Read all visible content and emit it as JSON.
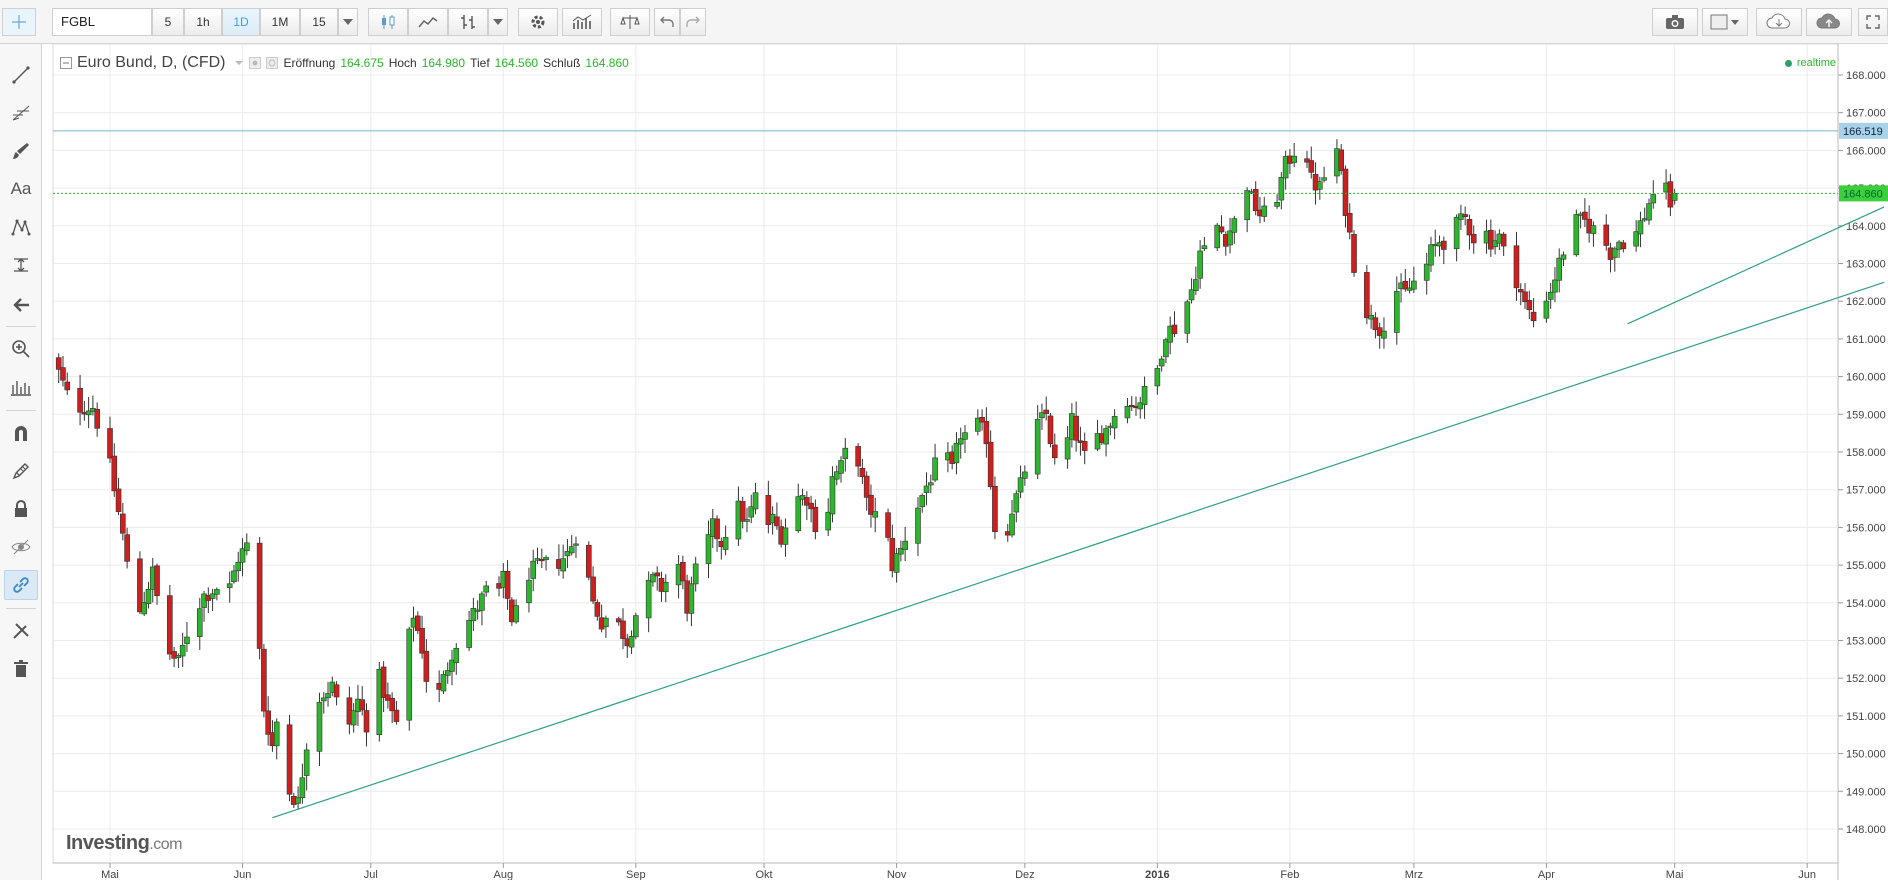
{
  "toolbar": {
    "symbol": "FGBL",
    "intervals": [
      "5",
      "1h",
      "1D",
      "1M",
      "15"
    ],
    "active_interval": "1D"
  },
  "icons": {
    "sidebar": [
      "crosshair-icon",
      "trend-line-icon",
      "fib-icon",
      "brush-icon",
      "text-icon",
      "pattern-icon",
      "measure-icon",
      "arrow-icon",
      "zoom-icon",
      "indicator-icon",
      "magnet-icon",
      "pencil-lock-icon",
      "lock-icon",
      "eye-hide-icon",
      "link-icon",
      "settings-tools-icon",
      "trash-icon"
    ],
    "toolbar": [
      "candles-icon",
      "line-chart-icon",
      "bars-icon",
      "settings-icon",
      "indicators-icon",
      "compare-icon",
      "undo-icon",
      "redo-icon",
      "camera-icon",
      "layout-icon",
      "cloud-download-icon",
      "cloud-upload-icon",
      "fullscreen-icon"
    ]
  },
  "legend": {
    "title": "Euro Bund, D, (CFD)",
    "open_label": "Eröffnung",
    "open": "164.675",
    "high_label": "Hoch",
    "high": "164.980",
    "low_label": "Tief",
    "low": "164.560",
    "close_label": "Schluß",
    "close": "164.860",
    "realtime": "realtime"
  },
  "watermark": {
    "brand": "Investing",
    "domain": ".com"
  },
  "colors": {
    "up": "#2db52d",
    "down": "#cc1f1f",
    "trendline": "#2f9e8a",
    "hline": "#7fb3cf",
    "price_tag": "#3ccf3c",
    "hline_tag": "#a9d2e8"
  },
  "chart_data": {
    "type": "candlestick",
    "title": "Euro Bund, D, (CFD)",
    "ylim": [
      147.5,
      168.6
    ],
    "y_ticks": [
      "148.000",
      "149.000",
      "150.000",
      "151.000",
      "152.000",
      "153.000",
      "154.000",
      "155.000",
      "156.000",
      "157.000",
      "158.000",
      "159.000",
      "160.000",
      "161.000",
      "162.000",
      "163.000",
      "164.000",
      "165.000",
      "166.000",
      "167.000",
      "168.000"
    ],
    "x_labels": [
      {
        "label": "Mai",
        "day": 0
      },
      {
        "label": "Jun",
        "day": 31
      },
      {
        "label": "Jul",
        "day": 61
      },
      {
        "label": "Aug",
        "day": 92
      },
      {
        "label": "Sep",
        "day": 123
      },
      {
        "label": "Okt",
        "day": 153
      },
      {
        "label": "Nov",
        "day": 184
      },
      {
        "label": "Dez",
        "day": 214
      },
      {
        "label": "2016",
        "day": 245
      },
      {
        "label": "Feb",
        "day": 276
      },
      {
        "label": "Mrz",
        "day": 305
      },
      {
        "label": "Apr",
        "day": 336
      },
      {
        "label": "Mai",
        "day": 366
      },
      {
        "label": "Jun",
        "day": 397
      }
    ],
    "current_price": "164.860",
    "horizontal_line": {
      "value": 166.519,
      "label": "166.519"
    },
    "trendlines": [
      {
        "from": {
          "day": 38,
          "price": 148.3
        },
        "to": {
          "day": 415,
          "price": 162.5
        }
      },
      {
        "from": {
          "day": 355,
          "price": 161.4
        },
        "to": {
          "day": 415,
          "price": 164.5
        }
      }
    ],
    "anchors": [
      [
        -13,
        160.4
      ],
      [
        -9,
        159.2
      ],
      [
        -4,
        159.2
      ],
      [
        0,
        157.6
      ],
      [
        3,
        155.8
      ],
      [
        5,
        154.2
      ],
      [
        7,
        153.8
      ],
      [
        10,
        154.8
      ],
      [
        13,
        152.8
      ],
      [
        16,
        152.4
      ],
      [
        19,
        153.6
      ],
      [
        22,
        154.2
      ],
      [
        25,
        154.4
      ],
      [
        27,
        154.0
      ],
      [
        30,
        155.2
      ],
      [
        32,
        155.5
      ],
      [
        34,
        154.2
      ],
      [
        36,
        151.2
      ],
      [
        38,
        150.2
      ],
      [
        40,
        151.5
      ],
      [
        42,
        149.0
      ],
      [
        44,
        148.7
      ],
      [
        46,
        150.3
      ],
      [
        49,
        151.5
      ],
      [
        52,
        151.8
      ],
      [
        55,
        150.5
      ],
      [
        58,
        151.4
      ],
      [
        61,
        150.5
      ],
      [
        63,
        152.0
      ],
      [
        65,
        151.3
      ],
      [
        67,
        150.8
      ],
      [
        69,
        152.5
      ],
      [
        71,
        153.7
      ],
      [
        73,
        152.8
      ],
      [
        75,
        151.2
      ],
      [
        77,
        151.6
      ],
      [
        80,
        152.7
      ],
      [
        82,
        153.2
      ],
      [
        85,
        153.7
      ],
      [
        88,
        154.3
      ],
      [
        90,
        154.0
      ],
      [
        92,
        154.6
      ],
      [
        94,
        153.6
      ],
      [
        96,
        153.9
      ],
      [
        98,
        154.8
      ],
      [
        101,
        155.0
      ],
      [
        104,
        155.0
      ],
      [
        107,
        155.3
      ],
      [
        109,
        155.8
      ],
      [
        111,
        155.2
      ],
      [
        113,
        154.0
      ],
      [
        115,
        153.5
      ],
      [
        117,
        153.7
      ],
      [
        119,
        153.4
      ],
      [
        121,
        153.0
      ],
      [
        123,
        153.7
      ],
      [
        125,
        154.2
      ],
      [
        127,
        154.6
      ],
      [
        129,
        154.4
      ],
      [
        131,
        154.7
      ],
      [
        133,
        155.0
      ],
      [
        135,
        153.9
      ],
      [
        137,
        154.8
      ],
      [
        139,
        155.3
      ],
      [
        141,
        156.0
      ],
      [
        143,
        155.6
      ],
      [
        145,
        156.2
      ],
      [
        147,
        156.5
      ],
      [
        149,
        156.1
      ],
      [
        151,
        156.8
      ],
      [
        153,
        156.0
      ],
      [
        155,
        156.2
      ],
      [
        157,
        155.8
      ],
      [
        159,
        156.3
      ],
      [
        161,
        156.8
      ],
      [
        163,
        156.8
      ],
      [
        165,
        156.1
      ],
      [
        167,
        155.7
      ],
      [
        169,
        157.3
      ],
      [
        171,
        157.6
      ],
      [
        173,
        158.3
      ],
      [
        175,
        157.8
      ],
      [
        177,
        156.6
      ],
      [
        179,
        156.3
      ],
      [
        181,
        156.2
      ],
      [
        183,
        155.0
      ],
      [
        185,
        155.4
      ],
      [
        187,
        156.1
      ],
      [
        189,
        156.6
      ],
      [
        191,
        157.1
      ],
      [
        193,
        157.6
      ],
      [
        195,
        158.0
      ],
      [
        197,
        157.5
      ],
      [
        199,
        158.5
      ],
      [
        201,
        158.4
      ],
      [
        203,
        158.7
      ],
      [
        205,
        158.4
      ],
      [
        207,
        156.0
      ],
      [
        209,
        155.5
      ],
      [
        211,
        156.5
      ],
      [
        213,
        157.1
      ],
      [
        215,
        158.0
      ],
      [
        217,
        158.7
      ],
      [
        219,
        159.0
      ],
      [
        221,
        157.7
      ],
      [
        223,
        157.8
      ],
      [
        225,
        158.8
      ],
      [
        227,
        158.1
      ],
      [
        229,
        157.6
      ],
      [
        231,
        158.4
      ],
      [
        233,
        158.6
      ],
      [
        235,
        159.0
      ],
      [
        237,
        159.7
      ],
      [
        239,
        159.2
      ],
      [
        241,
        159.4
      ],
      [
        243,
        159.7
      ],
      [
        245,
        160.2
      ],
      [
        247,
        161.2
      ],
      [
        249,
        161.3
      ],
      [
        251,
        161.7
      ],
      [
        253,
        162.3
      ],
      [
        255,
        163.3
      ],
      [
        257,
        163.4
      ],
      [
        259,
        164.0
      ],
      [
        261,
        163.7
      ],
      [
        263,
        164.1
      ],
      [
        265,
        165.5
      ],
      [
        267,
        164.7
      ],
      [
        269,
        164.3
      ],
      [
        271,
        164.3
      ],
      [
        273,
        164.8
      ],
      [
        275,
        165.6
      ],
      [
        277,
        166.0
      ],
      [
        279,
        166.5
      ],
      [
        281,
        165.2
      ],
      [
        283,
        165.0
      ],
      [
        285,
        165.6
      ],
      [
        287,
        166.0
      ],
      [
        289,
        164.5
      ],
      [
        291,
        163.0
      ],
      [
        293,
        162.0
      ],
      [
        295,
        161.5
      ],
      [
        297,
        161.3
      ],
      [
        299,
        161.6
      ],
      [
        301,
        162.3
      ],
      [
        303,
        162.2
      ],
      [
        305,
        162.5
      ],
      [
        307,
        162.6
      ],
      [
        309,
        163.3
      ],
      [
        311,
        163.6
      ],
      [
        313,
        163.6
      ],
      [
        315,
        164.0
      ],
      [
        317,
        164.2
      ],
      [
        319,
        163.7
      ],
      [
        321,
        164.0
      ],
      [
        323,
        163.6
      ],
      [
        325,
        163.7
      ],
      [
        327,
        162.9
      ],
      [
        329,
        162.6
      ],
      [
        331,
        161.9
      ],
      [
        333,
        161.5
      ],
      [
        335,
        162.0
      ],
      [
        337,
        162.3
      ],
      [
        339,
        163.0
      ],
      [
        341,
        163.7
      ],
      [
        343,
        164.1
      ],
      [
        345,
        164.1
      ],
      [
        347,
        163.9
      ],
      [
        349,
        163.7
      ],
      [
        351,
        163.3
      ],
      [
        353,
        163.6
      ],
      [
        355,
        163.6
      ],
      [
        357,
        163.8
      ],
      [
        359,
        164.3
      ],
      [
        361,
        164.9
      ],
      [
        363,
        165.2
      ],
      [
        365,
        164.6
      ],
      [
        367,
        164.9
      ]
    ]
  }
}
